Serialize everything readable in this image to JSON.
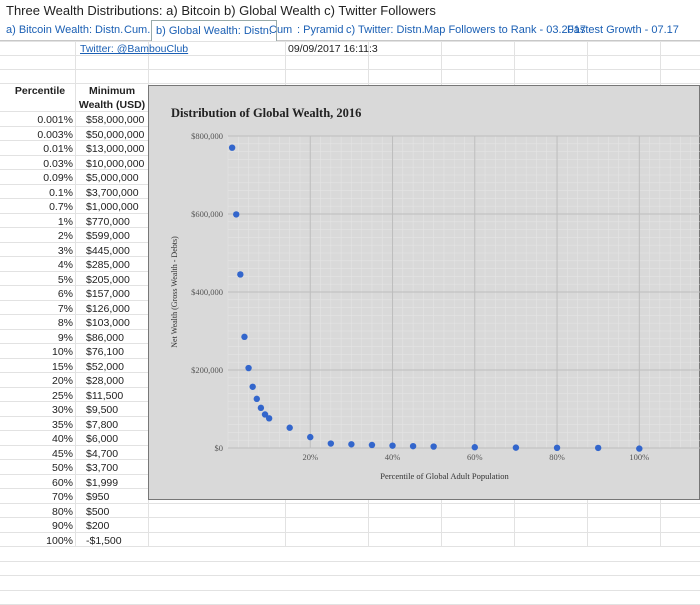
{
  "window_title": "Three Wealth Distributions: a) Bitcoin b) Global Wealth c) Twitter Followers",
  "tabs": [
    {
      "label": "a) Bitcoin Wealth: Distn.",
      "active": false
    },
    {
      "label": "Cum.",
      "active": false
    },
    {
      "label": "b) Global Wealth: Distn.",
      "active": true
    },
    {
      "label": "Cum",
      "active": false
    },
    {
      "label": ": Pyramid",
      "active": false
    },
    {
      "label": "c) Twitter: Distn.",
      "active": false
    },
    {
      "label": "Map Followers to Rank - 03.2017",
      "active": false
    },
    {
      "label": "Fastest Growth - 07.17",
      "active": false
    }
  ],
  "sheet": {
    "twitter_link": "Twitter: @BambouClub",
    "timestamp": "09/09/2017 16:11:3",
    "col_headers": {
      "percentile": "Percentile",
      "min_wealth_1": "Minimum",
      "min_wealth_2": "Wealth (USD)"
    },
    "rows": [
      {
        "p": "0.001%",
        "w": "$58,000,000"
      },
      {
        "p": "0.003%",
        "w": "$50,000,000"
      },
      {
        "p": "0.01%",
        "w": "$13,000,000"
      },
      {
        "p": "0.03%",
        "w": "$10,000,000"
      },
      {
        "p": "0.09%",
        "w": "$5,000,000"
      },
      {
        "p": "0.1%",
        "w": "$3,700,000"
      },
      {
        "p": "0.7%",
        "w": "$1,000,000"
      },
      {
        "p": "1%",
        "w": "$770,000"
      },
      {
        "p": "2%",
        "w": "$599,000"
      },
      {
        "p": "3%",
        "w": "$445,000"
      },
      {
        "p": "4%",
        "w": "$285,000"
      },
      {
        "p": "5%",
        "w": "$205,000"
      },
      {
        "p": "6%",
        "w": "$157,000"
      },
      {
        "p": "7%",
        "w": "$126,000"
      },
      {
        "p": "8%",
        "w": "$103,000"
      },
      {
        "p": "9%",
        "w": "$86,000"
      },
      {
        "p": "10%",
        "w": "$76,100"
      },
      {
        "p": "15%",
        "w": "$52,000"
      },
      {
        "p": "20%",
        "w": "$28,000"
      },
      {
        "p": "25%",
        "w": "$11,500"
      },
      {
        "p": "30%",
        "w": "$9,500"
      },
      {
        "p": "35%",
        "w": "$7,800"
      },
      {
        "p": "40%",
        "w": "$6,000"
      },
      {
        "p": "45%",
        "w": "$4,700"
      },
      {
        "p": "50%",
        "w": "$3,700"
      },
      {
        "p": "60%",
        "w": "$1,999"
      },
      {
        "p": "70%",
        "w": "$950"
      },
      {
        "p": "80%",
        "w": "$500"
      },
      {
        "p": "90%",
        "w": "$200"
      },
      {
        "p": "100%",
        "w": "-$1,500"
      }
    ]
  },
  "colors": {
    "point": "#3366cc",
    "chart_bg": "#d9d9d9",
    "link": "#1a5fb4"
  },
  "chart_data": {
    "type": "scatter",
    "title": "Distribution of Global Wealth, 2016",
    "xlabel": "Percentile of Global Adult Population",
    "ylabel": "Net Wealth (Gross Wealth - Debts)",
    "xlim": [
      0,
      1.15
    ],
    "ylim": [
      0,
      800000
    ],
    "x_ticks": [
      0.2,
      0.4,
      0.6,
      0.8,
      1.0
    ],
    "x_tick_labels": [
      "20%",
      "40%",
      "60%",
      "80%",
      "100%"
    ],
    "y_ticks": [
      0,
      200000,
      400000,
      600000,
      800000
    ],
    "y_tick_labels": [
      "$0",
      "$200,000",
      "$400,000",
      "$600,000",
      "$800,000"
    ],
    "grid": true,
    "legend": "none",
    "points": [
      {
        "x": 0.01,
        "y": 770000
      },
      {
        "x": 0.02,
        "y": 599000
      },
      {
        "x": 0.03,
        "y": 445000
      },
      {
        "x": 0.04,
        "y": 285000
      },
      {
        "x": 0.05,
        "y": 205000
      },
      {
        "x": 0.06,
        "y": 157000
      },
      {
        "x": 0.07,
        "y": 126000
      },
      {
        "x": 0.08,
        "y": 103000
      },
      {
        "x": 0.09,
        "y": 86000
      },
      {
        "x": 0.1,
        "y": 76100
      },
      {
        "x": 0.15,
        "y": 52000
      },
      {
        "x": 0.2,
        "y": 28000
      },
      {
        "x": 0.25,
        "y": 11500
      },
      {
        "x": 0.3,
        "y": 9500
      },
      {
        "x": 0.35,
        "y": 7800
      },
      {
        "x": 0.4,
        "y": 6000
      },
      {
        "x": 0.45,
        "y": 4700
      },
      {
        "x": 0.5,
        "y": 3700
      },
      {
        "x": 0.6,
        "y": 1999
      },
      {
        "x": 0.7,
        "y": 950
      },
      {
        "x": 0.8,
        "y": 500
      },
      {
        "x": 0.9,
        "y": 200
      },
      {
        "x": 1.0,
        "y": -1500
      }
    ]
  }
}
